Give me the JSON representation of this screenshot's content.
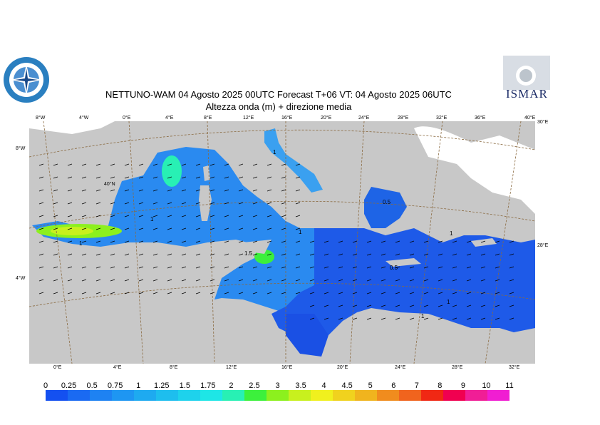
{
  "title": {
    "line1": "NETTUNO-WAM  04   Agosto  2025 00UTC Forecast T+06 VT: 04   Agosto  2025 06UTC",
    "line2": "Altezza onda (m) + direzione media"
  },
  "logos": {
    "left": "meteorological-service-emblem",
    "right": "ISMAR"
  },
  "map": {
    "top_lon_labels": [
      "8°W",
      "4°W",
      "0°E",
      "4°E",
      "8°E",
      "12°E",
      "16°E",
      "20°E",
      "24°E",
      "28°E",
      "32°E",
      "36°E",
      "40°E"
    ],
    "bottom_lon_labels": [
      "0°E",
      "4°E",
      "8°E",
      "12°E",
      "16°E",
      "20°E",
      "24°E",
      "28°E",
      "32°E"
    ],
    "left_lat_labels": [
      "8°W",
      "40°N",
      "4°W"
    ],
    "right_lat_labels": [
      "30°E",
      "28°E"
    ],
    "contour_labels": [
      "1",
      "1",
      "1",
      "1",
      "1.5",
      "0.5",
      "1",
      "0.5",
      "1",
      "1"
    ],
    "land_color": "#c8c8c8",
    "sea_base_color": "#1e64e6"
  },
  "legend": {
    "labels": [
      "0",
      "0.25",
      "0.5",
      "0.75",
      "1",
      "1.25",
      "1.5",
      "1.75",
      "2",
      "2.5",
      "3",
      "3.5",
      "4",
      "4.5",
      "5",
      "6",
      "7",
      "8",
      "9",
      "10",
      "11"
    ],
    "colors": [
      "#1450f0",
      "#1a6af2",
      "#1e82f2",
      "#1e96f2",
      "#1eaaf0",
      "#1ebeee",
      "#1ed2ec",
      "#1ee6e6",
      "#28f0b4",
      "#3cf03c",
      "#8cf01e",
      "#c8f01e",
      "#f0f01e",
      "#f0d21e",
      "#f0b41e",
      "#f08c1e",
      "#f0641e",
      "#f02814",
      "#f00050",
      "#f01e96",
      "#f01ed2"
    ]
  }
}
